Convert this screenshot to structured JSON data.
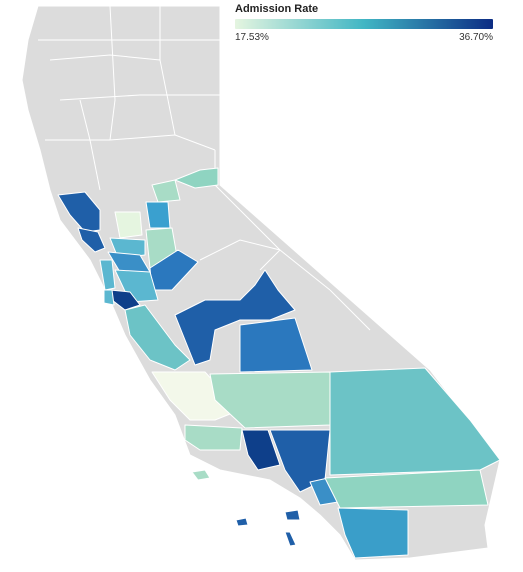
{
  "legend": {
    "title": "Admission Rate",
    "min_label": "17.53%",
    "max_label": "36.70%",
    "min_value": 17.53,
    "max_value": 36.7,
    "color_low": "#e5f5e0",
    "color_mid": "#41b6c4",
    "color_high": "#0c2c84"
  },
  "colors": {
    "no_data": "#dcdcdc",
    "border": "#ffffff"
  }
}
